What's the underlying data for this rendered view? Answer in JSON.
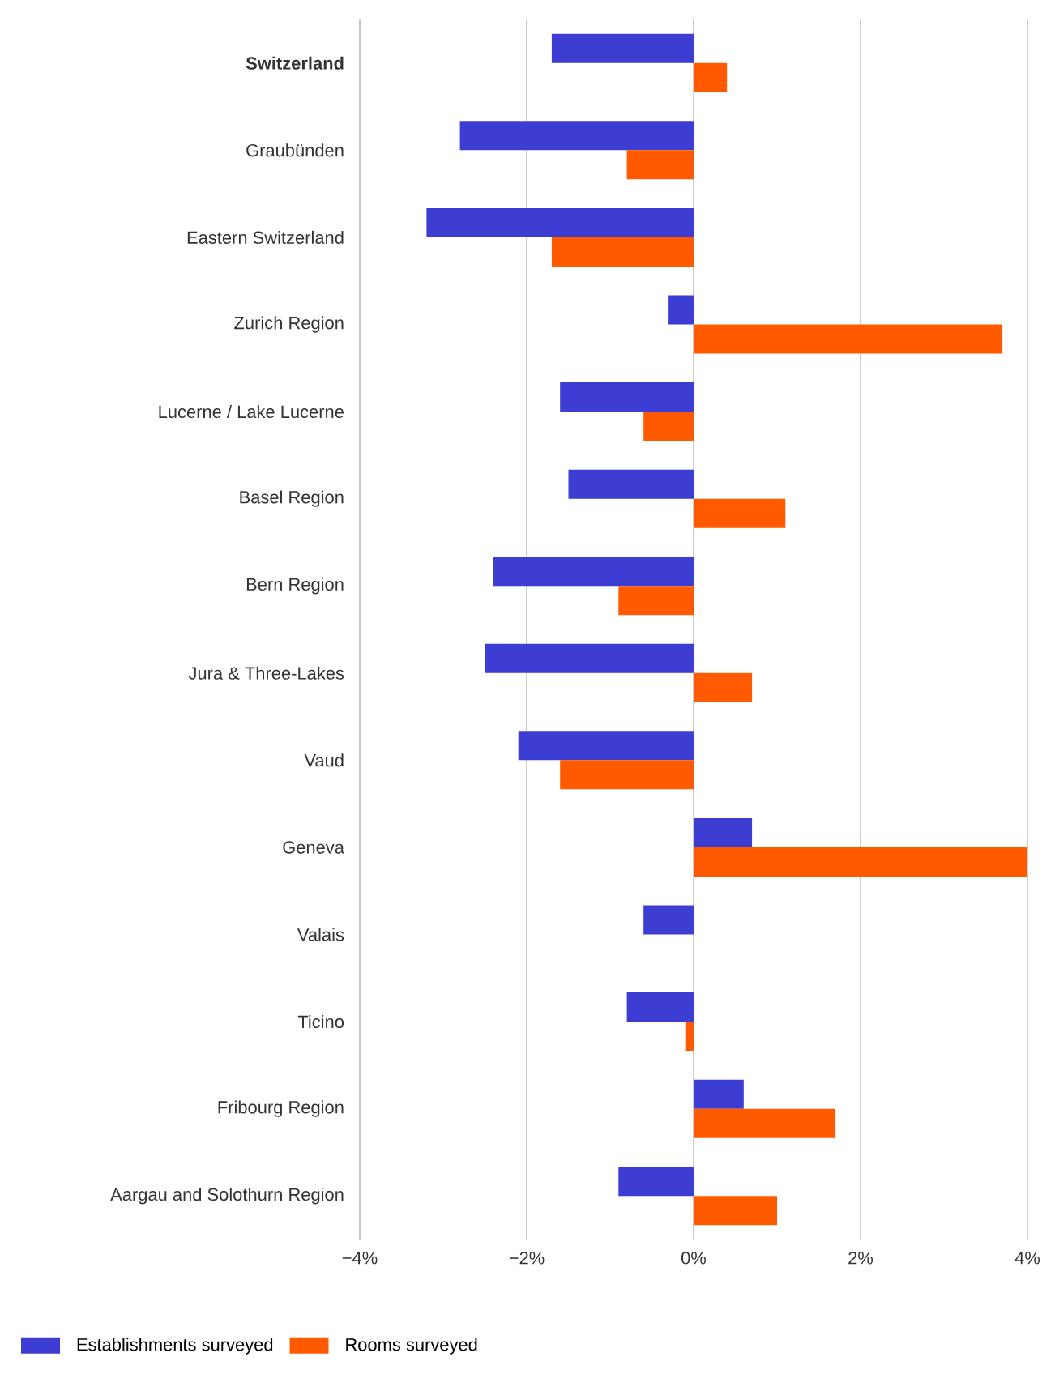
{
  "chart_data": {
    "type": "bar",
    "orientation": "horizontal",
    "categories": [
      "**Switzerland**",
      "Graubünden",
      "Eastern Switzerland",
      "Zurich Region",
      "Lucerne / Lake Lucerne",
      "Basel Region",
      "Bern Region",
      "Jura & Three-Lakes",
      "Vaud",
      "Geneva",
      "Valais",
      "Ticino",
      "Fribourg Region",
      "Aargau and Solothurn Region"
    ],
    "series": [
      {
        "name": "Establishments surveyed",
        "color": "#3d3dd4",
        "values": [
          -1.7,
          -2.8,
          -3.2,
          -0.3,
          -1.6,
          -1.5,
          -2.4,
          -2.5,
          -2.1,
          0.7,
          -0.6,
          -0.8,
          0.6,
          -0.9
        ]
      },
      {
        "name": "Rooms surveyed",
        "color": "#ff5a00",
        "values": [
          0.4,
          -0.8,
          -1.7,
          3.7,
          -0.6,
          1.1,
          -0.9,
          0.7,
          -1.6,
          4.0,
          0,
          -0.1,
          1.7,
          1.0
        ]
      }
    ],
    "xlim": [
      -4,
      4
    ],
    "xticks": [
      {
        "value": -4,
        "label": "−4%"
      },
      {
        "value": -2,
        "label": "−2%"
      },
      {
        "value": 0,
        "label": "0%"
      },
      {
        "value": 2,
        "label": "2%"
      },
      {
        "value": 4,
        "label": "4%"
      }
    ],
    "grid": "x",
    "legend": "bottom"
  }
}
